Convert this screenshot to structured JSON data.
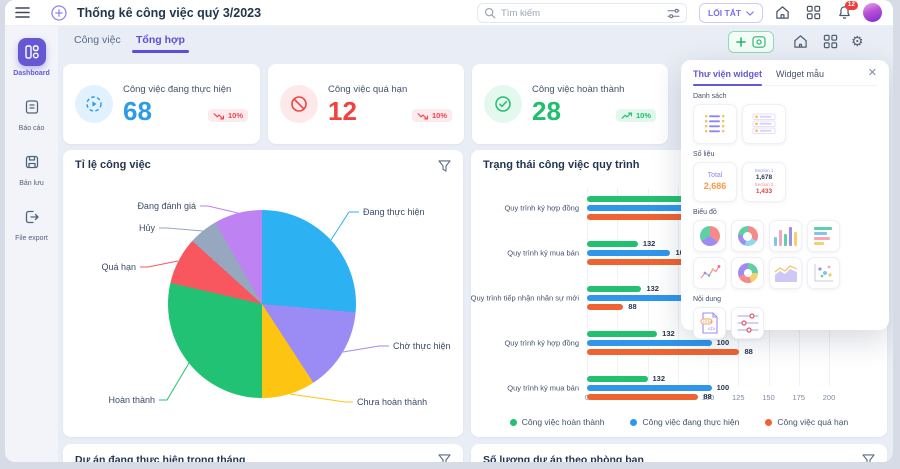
{
  "topbar": {
    "title": "Thống kê công việc quý 3/2023",
    "search_placeholder": "Tìm kiếm",
    "shortcut_button": "LỐI TẮT",
    "notification_count": "12"
  },
  "sidebar": {
    "items": [
      {
        "label": "Dashboard",
        "icon": "dashboard-icon",
        "active": true
      },
      {
        "label": "Báo cáo",
        "icon": "report-icon",
        "active": false
      },
      {
        "label": "Bản lưu",
        "icon": "save-icon",
        "active": false
      },
      {
        "label": "File export",
        "icon": "file-export-icon",
        "active": false
      }
    ]
  },
  "tabs": [
    {
      "label": "Công việc",
      "active": false
    },
    {
      "label": "Tổng hợp",
      "active": true
    }
  ],
  "stats": [
    {
      "label": "Công việc đang thực hiện",
      "value": "68",
      "color": "#2e9be8",
      "icon_bg": "#e1f1fd",
      "trend": "10%",
      "trend_direction": "down",
      "icon": "in-progress-icon"
    },
    {
      "label": "Công việc quá hạn",
      "value": "12",
      "color": "#f0433f",
      "icon_bg": "#fde9e9",
      "trend": "10%",
      "trend_direction": "down",
      "icon": "overdue-icon"
    },
    {
      "label": "Công việc hoàn thành",
      "value": "28",
      "color": "#1fbf6e",
      "icon_bg": "#e4f8ee",
      "trend": "10%",
      "trend_direction": "up",
      "icon": "completed-icon"
    }
  ],
  "chart_data": [
    {
      "type": "pie",
      "title": "Tỉ lệ công việc",
      "legend_position": "labels-with-leader-lines",
      "slices": [
        {
          "label": "Đang thực hiện",
          "color": "#2cb1f2",
          "pct": 26.4
        },
        {
          "label": "Chờ thực hiện",
          "color": "#9b8bf4",
          "pct": 14.4
        },
        {
          "label": "Chưa hoàn thành",
          "color": "#fdc411",
          "pct": 9.2
        },
        {
          "label": "Hoàn thành",
          "color": "#21c273",
          "pct": 28.6
        },
        {
          "label": "Quá hạn",
          "color": "#f8575f",
          "pct": 8.1
        },
        {
          "label": "Hủy",
          "color": "#96a7c0",
          "pct": 5.0
        },
        {
          "label": "Đang đánh giá",
          "color": "#be82f2",
          "pct": 8.3
        }
      ]
    },
    {
      "type": "bar",
      "orientation": "horizontal",
      "title": "Trạng thái công việc quy trình",
      "xlim": [
        0,
        200
      ],
      "x_ticks": [
        0,
        25,
        50,
        75,
        100,
        125,
        150,
        175,
        200
      ],
      "grid": true,
      "legend_position": "bottom",
      "series_colors": [
        "#22c070",
        "#2f96ec",
        "#ee6331"
      ],
      "legend": [
        "Công việc hoàn thành",
        "Công việc đang thực hiện",
        "Công việc quá hạn"
      ],
      "rows": [
        {
          "label": "Quy trình ký hợp đồng",
          "bars": [
            {
              "len": 150,
              "value": ""
            },
            {
              "len": 160,
              "value": ""
            },
            {
              "len": 170,
              "value": ""
            }
          ]
        },
        {
          "label": "Quy trình ký mua bán",
          "bars": [
            {
              "len": 42,
              "value": "132"
            },
            {
              "len": 69,
              "value": "100"
            },
            {
              "len": 150,
              "value": ""
            }
          ]
        },
        {
          "label": "Quy trình tiếp nhận nhân sự mới",
          "bars": [
            {
              "len": 45,
              "value": "132"
            },
            {
              "len": 150,
              "value": ""
            },
            {
              "len": 30,
              "value": "88"
            }
          ]
        },
        {
          "label": "Quy trình ký hợp đồng",
          "bars": [
            {
              "len": 58,
              "value": "132"
            },
            {
              "len": 103,
              "value": "100"
            },
            {
              "len": 126,
              "value": "88"
            }
          ]
        },
        {
          "label": "Quy trình ký mua bán",
          "bars": [
            {
              "len": 50,
              "value": "132"
            },
            {
              "len": 103,
              "value": "100"
            },
            {
              "len": 92,
              "value": "88"
            }
          ]
        }
      ]
    }
  ],
  "widget_panel": {
    "tabs": [
      {
        "label": "Thư viện widget",
        "active": true
      },
      {
        "label": "Widget mẫu",
        "active": false
      }
    ],
    "close_icon": "close-icon",
    "sections": [
      {
        "label": "Danh sách",
        "kind": "big",
        "tiles": [
          {
            "icon": "list-detail-widget-icon"
          },
          {
            "icon": "list-rows-widget-icon"
          }
        ]
      },
      {
        "label": "Số liệu",
        "kind": "big",
        "tiles": [
          {
            "icon": "single-number-widget-icon",
            "title": "Total",
            "value": "2,686"
          },
          {
            "icon": "double-number-widget-icon",
            "rows": [
              [
                "Section 1",
                "1,678"
              ],
              [
                "Section 2",
                "1,433"
              ]
            ]
          }
        ]
      },
      {
        "label": "Biểu đồ",
        "kind": "small",
        "tiles": [
          {
            "icon": "pie-chart-widget-icon"
          },
          {
            "icon": "donut-chart-widget-icon"
          },
          {
            "icon": "column-chart-widget-icon"
          },
          {
            "icon": "bar-chart-widget-icon"
          },
          {
            "icon": "line-chart-widget-icon"
          },
          {
            "icon": "ring-chart-widget-icon"
          },
          {
            "icon": "area-chart-widget-icon"
          },
          {
            "icon": "scatter-chart-widget-icon"
          }
        ]
      },
      {
        "label": "Nội dung",
        "kind": "small",
        "tiles": [
          {
            "icon": "html-content-widget-icon"
          },
          {
            "icon": "settings-sliders-widget-icon"
          }
        ]
      }
    ]
  },
  "bottom_cards": [
    {
      "title": "Dự án đang thực hiện trong tháng"
    },
    {
      "title": "Số lượng dự án theo phòng ban"
    }
  ],
  "colors": {
    "accent_purple": "#6558d2",
    "stat_blue": "#2e9be8",
    "stat_red": "#f0433f",
    "stat_green": "#1fbf6e",
    "bar_green": "#22c070",
    "bar_blue": "#2f96ec",
    "bar_orange": "#ee6331"
  }
}
